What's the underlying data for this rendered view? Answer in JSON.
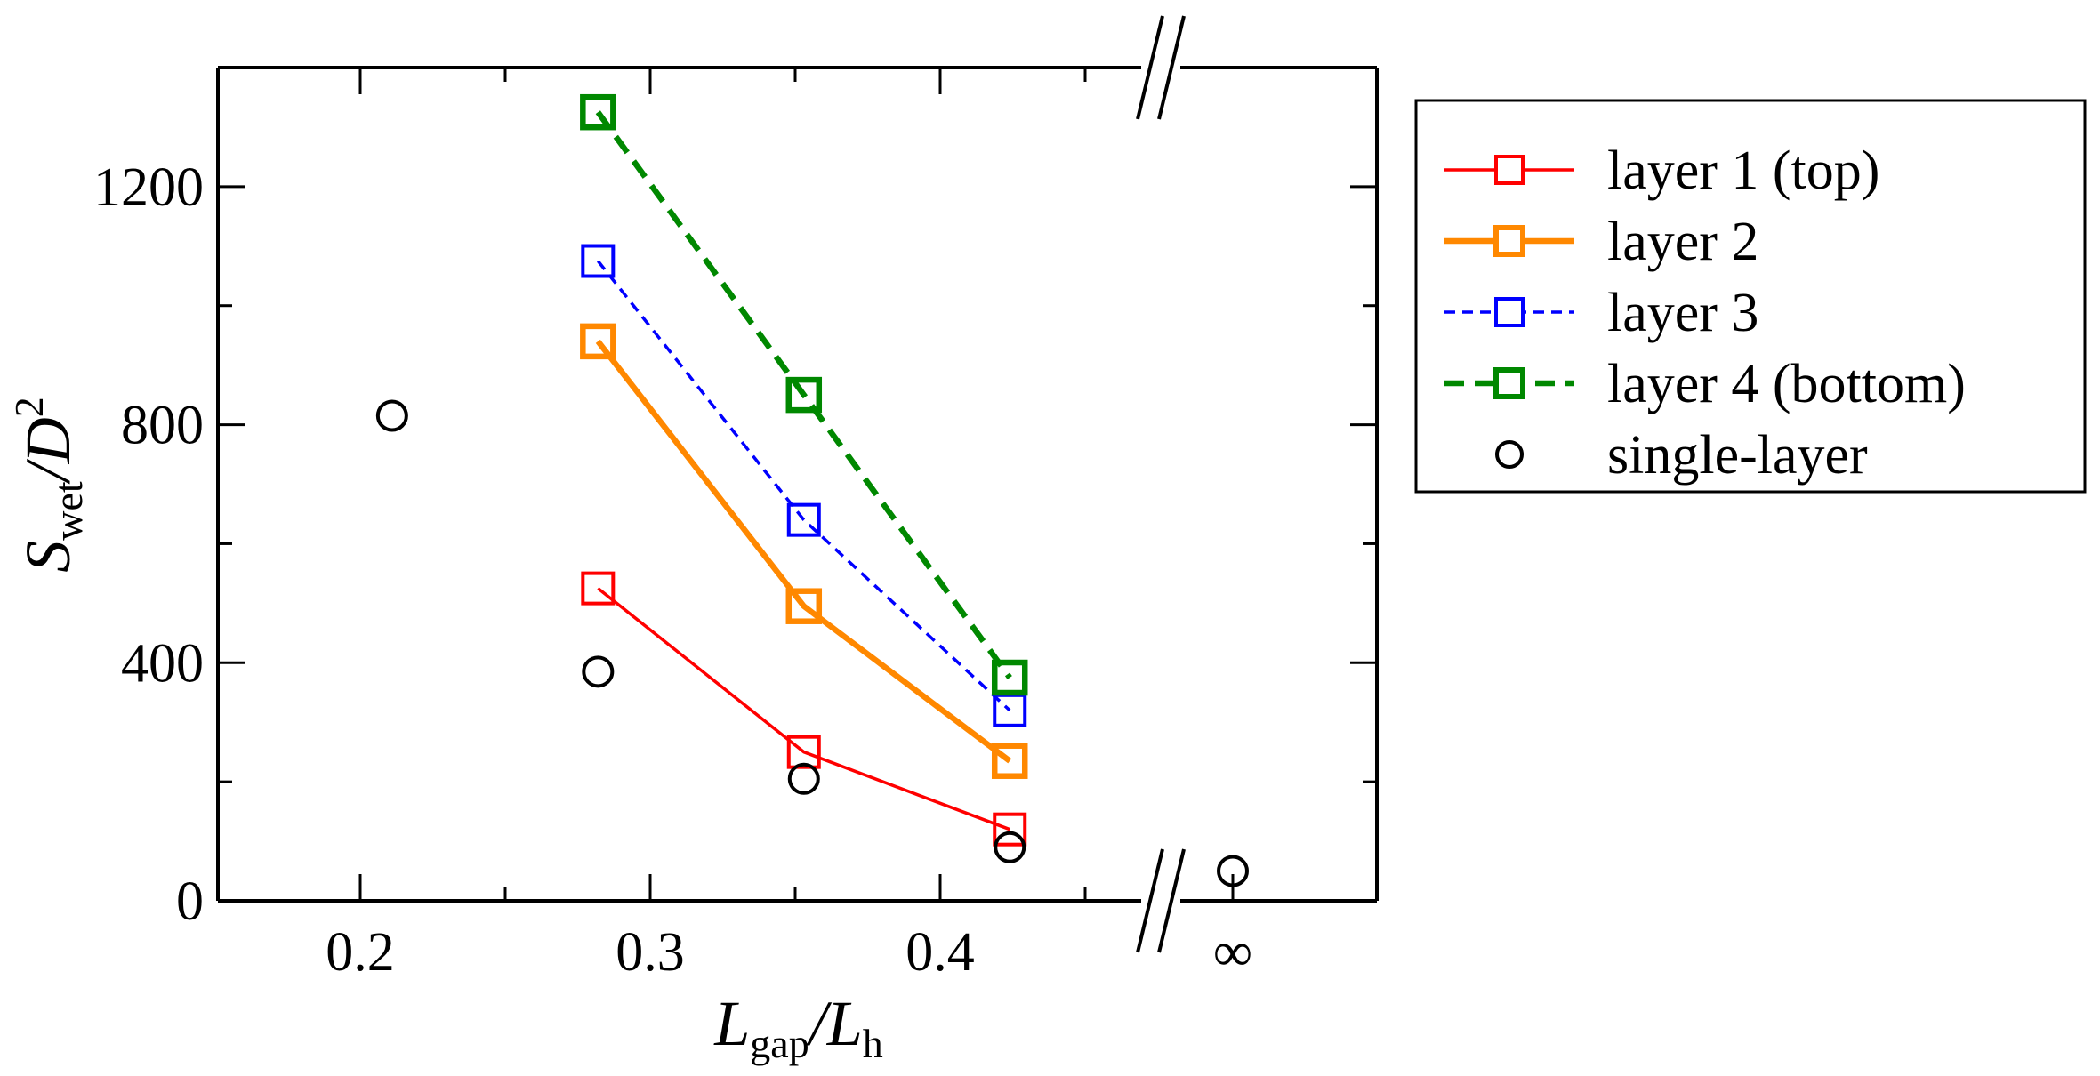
{
  "chart_data": {
    "type": "line",
    "xlabel": {
      "main": "L",
      "sub": "gap",
      "slash": "/",
      "main2": "L",
      "sub2": "h"
    },
    "ylabel": {
      "main": "S",
      "sub": "wet",
      "slash": "/",
      "main2": "D",
      "sup2": "2"
    },
    "xlim": [
      0.15,
      0.55
    ],
    "ylim": [
      0,
      1400
    ],
    "x_ticks": [
      0.2,
      0.3,
      0.4
    ],
    "x_tick_labels": [
      "0.2",
      "0.3",
      "0.4"
    ],
    "x_break_label": "∞",
    "y_ticks": [
      0,
      400,
      800,
      1200
    ],
    "y_tick_labels": [
      "0",
      "400",
      "800",
      "1200"
    ],
    "series": [
      {
        "name": "layer 1 (top)",
        "color": "#ff0000",
        "dash": "solid",
        "weight": "thin",
        "marker": "square",
        "x": [
          0.282,
          0.353,
          0.424
        ],
        "values": [
          525,
          250,
          120
        ]
      },
      {
        "name": "layer 2",
        "color": "#ff8800",
        "dash": "solid",
        "weight": "thick",
        "marker": "square",
        "x": [
          0.282,
          0.353,
          0.424
        ],
        "values": [
          940,
          495,
          235
        ]
      },
      {
        "name": "layer 3",
        "color": "#0000ff",
        "dash": "dashed",
        "weight": "thin",
        "marker": "square",
        "x": [
          0.282,
          0.353,
          0.424
        ],
        "values": [
          1075,
          640,
          320
        ]
      },
      {
        "name": "layer 4 (bottom)",
        "color": "#008800",
        "dash": "dashed",
        "weight": "thick",
        "marker": "square",
        "x": [
          0.282,
          0.353,
          0.424
        ],
        "values": [
          1325,
          850,
          375
        ]
      },
      {
        "name": "single-layer",
        "color": "#000000",
        "dash": "none",
        "weight": "thin",
        "marker": "circle",
        "x": [
          0.211,
          0.282,
          0.353,
          0.424,
          "∞"
        ],
        "values": [
          815,
          385,
          205,
          90,
          50
        ]
      }
    ],
    "legend_position": "right"
  }
}
